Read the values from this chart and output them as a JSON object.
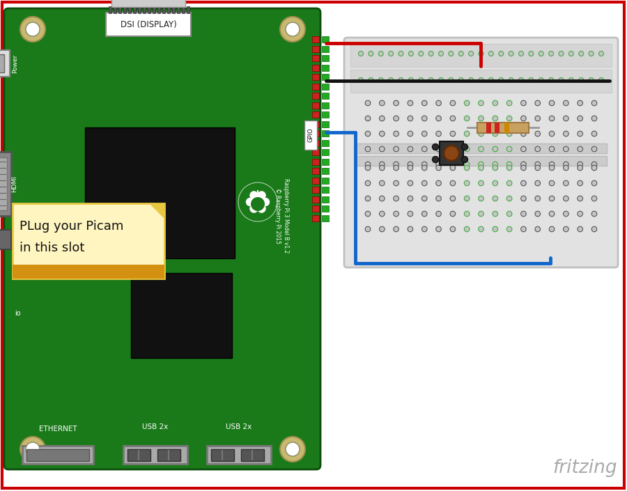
{
  "bg_color": "#ffffff",
  "border_color": "#cc0000",
  "board_color": "#1a7a1a",
  "board_edge": "#0d4d0d",
  "note_text_line1": "PLug your Picam",
  "note_text_line2": "in this slot",
  "note_bg": "#fef5c0",
  "note_fold": "#e8c840",
  "note_bottom": "#d49010",
  "dsi_label": "DSI (DISPLAY)",
  "gpio_label": "GPIO",
  "rpi_model_line1": "Raspberry Pi 3 Model B v1.2",
  "rpi_model_line2": "© Raspberry Pi 2015",
  "power_label": "Power",
  "hdmi_label": "HDMI",
  "ethernet_label": "ETHERNET",
  "usb1_label": "USB 2x",
  "usb2_label": "USB 2x",
  "wire_red": "#cc0000",
  "wire_black": "#111111",
  "wire_blue": "#1166cc",
  "bb_bg": "#e2e2e2",
  "bb_edge": "#c0c0c0",
  "resistor_body": "#c8a060",
  "resistor_band1": "#cc2222",
  "resistor_band2": "#cc2222",
  "resistor_band3": "#cc8800",
  "button_body": "#333333",
  "button_center": "#8B4513",
  "fritzing_color": "#aaaaaa",
  "fritzing_text": "fritzing",
  "pin_red": "#cc2222",
  "pin_green": "#22aa22"
}
